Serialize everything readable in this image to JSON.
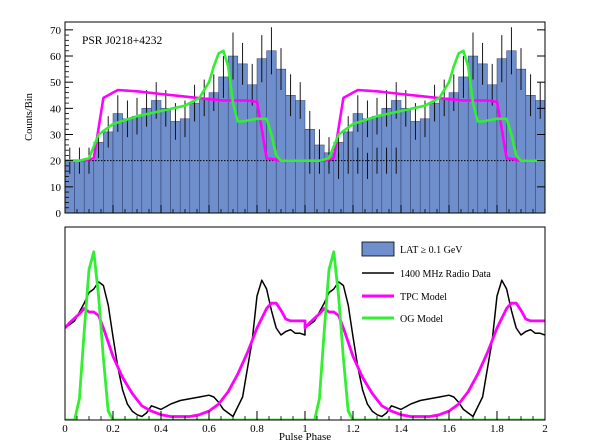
{
  "chart_data": [
    {
      "type": "bar",
      "title": "PSR J0218+4232",
      "ylabel": "Counts/Bin",
      "xlabel": "",
      "xlim": [
        0,
        2
      ],
      "ylim": [
        0,
        73
      ],
      "yticks": [
        0,
        10,
        20,
        30,
        40,
        50,
        60,
        70
      ],
      "background_level": 20,
      "bin_width": 0.04,
      "hist_counts": [
        20,
        20,
        20,
        27,
        31,
        38,
        36,
        37,
        40,
        43,
        40,
        35,
        36,
        42,
        44,
        46,
        52,
        60,
        57,
        49,
        59,
        62,
        55,
        45,
        43,
        32,
        26,
        23,
        18,
        20,
        20,
        18,
        20,
        20,
        20
      ],
      "errors": [
        5,
        5,
        5,
        6,
        6,
        7,
        7,
        7,
        7,
        7,
        7,
        7,
        7,
        7,
        7,
        7,
        8,
        9,
        8,
        8,
        9,
        9,
        8,
        8,
        7,
        7,
        6,
        6,
        5,
        5,
        5,
        5,
        5,
        5,
        5
      ],
      "series": [
        {
          "name": "TPC Model",
          "color": "#ff00ff",
          "x": [
            0.0,
            0.06,
            0.08,
            0.12,
            0.16,
            0.22,
            0.3,
            0.4,
            0.5,
            0.6,
            0.66,
            0.7,
            0.76,
            0.8,
            0.82,
            0.84,
            0.9,
            1.0
          ],
          "y": [
            20,
            20,
            20,
            21,
            44,
            47,
            46.5,
            45.5,
            44.5,
            43.5,
            43,
            43,
            43,
            42.5,
            32,
            21,
            20,
            20
          ]
        },
        {
          "name": "OG Model",
          "color": "#33ee33",
          "x": [
            0.0,
            0.06,
            0.1,
            0.14,
            0.2,
            0.3,
            0.4,
            0.5,
            0.56,
            0.6,
            0.62,
            0.64,
            0.66,
            0.68,
            0.7,
            0.72,
            0.74,
            0.8,
            0.84,
            0.86,
            0.88,
            0.9,
            0.94,
            1.0
          ],
          "y": [
            20,
            20,
            21,
            30,
            34,
            37,
            39,
            41,
            44,
            50,
            56,
            61,
            62,
            56,
            42,
            35,
            35,
            36,
            36,
            30,
            22,
            20,
            20,
            20
          ]
        }
      ]
    },
    {
      "type": "line",
      "xlabel": "Pulse Phase",
      "ylabel": "",
      "xlim": [
        0,
        2
      ],
      "ylim": [
        0,
        1
      ],
      "xticks": [
        "0",
        "0.2",
        "0.4",
        "0.6",
        "0.8",
        "1",
        "1.2",
        "1.4",
        "1.6",
        "1.8",
        "2"
      ],
      "legend": [
        "LAT ≥ 0.1 GeV",
        "1400 MHz Radio Data",
        "TPC Model",
        "OG Model"
      ],
      "legend_position": "top-right",
      "series": [
        {
          "name": "1400 MHz Radio Data",
          "color": "#000000",
          "x": [
            0.0,
            0.04,
            0.08,
            0.1,
            0.12,
            0.14,
            0.16,
            0.18,
            0.2,
            0.22,
            0.24,
            0.26,
            0.28,
            0.3,
            0.32,
            0.34,
            0.36,
            0.38,
            0.4,
            0.44,
            0.48,
            0.52,
            0.56,
            0.6,
            0.62,
            0.64,
            0.66,
            0.7,
            0.74,
            0.78,
            0.8,
            0.82,
            0.84,
            0.86,
            0.88,
            0.9,
            0.92,
            0.94,
            0.96,
            0.98,
            1.0
          ],
          "y": [
            0.52,
            0.56,
            0.66,
            0.72,
            0.74,
            0.78,
            0.76,
            0.65,
            0.47,
            0.3,
            0.17,
            0.09,
            0.05,
            0.03,
            0.02,
            0.04,
            0.08,
            0.07,
            0.06,
            0.09,
            0.11,
            0.12,
            0.13,
            0.14,
            0.13,
            0.1,
            0.06,
            0.02,
            0.13,
            0.45,
            0.7,
            0.79,
            0.74,
            0.62,
            0.52,
            0.48,
            0.5,
            0.51,
            0.49,
            0.49,
            0.48
          ]
        },
        {
          "name": "TPC Model",
          "color": "#ff00ff",
          "x": [
            0.0,
            0.02,
            0.06,
            0.08,
            0.1,
            0.12,
            0.14,
            0.16,
            0.2,
            0.24,
            0.28,
            0.32,
            0.36,
            0.4,
            0.44,
            0.48,
            0.52,
            0.56,
            0.6,
            0.64,
            0.68,
            0.72,
            0.76,
            0.8,
            0.84,
            0.86,
            0.88,
            0.9,
            0.92,
            0.94,
            1.0
          ],
          "y": [
            0.52,
            0.55,
            0.6,
            0.63,
            0.61,
            0.61,
            0.59,
            0.52,
            0.36,
            0.24,
            0.15,
            0.08,
            0.05,
            0.03,
            0.02,
            0.02,
            0.02,
            0.03,
            0.05,
            0.09,
            0.16,
            0.26,
            0.38,
            0.52,
            0.63,
            0.66,
            0.66,
            0.62,
            0.57,
            0.56,
            0.56
          ]
        },
        {
          "name": "OG Model",
          "color": "#33ee33",
          "x": [
            0.0,
            0.04,
            0.06,
            0.08,
            0.1,
            0.12,
            0.14,
            0.16,
            0.18,
            0.2,
            1.0
          ],
          "y": [
            0.0,
            0.0,
            0.12,
            0.5,
            0.85,
            0.95,
            0.7,
            0.35,
            0.05,
            0.0,
            0.0
          ]
        }
      ],
      "legend_fill_color": "#6f8fcc"
    }
  ]
}
